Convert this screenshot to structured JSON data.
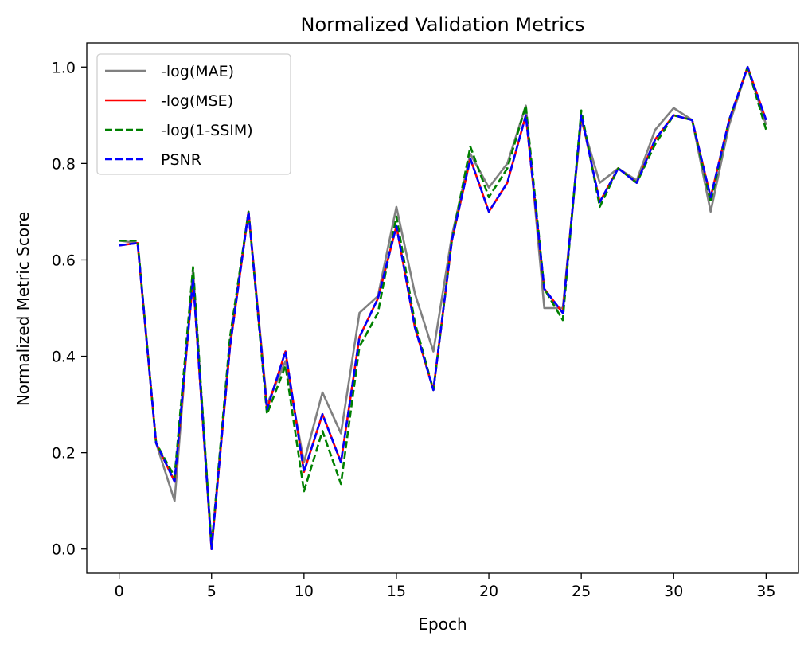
{
  "chart_data": {
    "type": "line",
    "title": "Normalized Validation Metrics",
    "xlabel": "Epoch",
    "ylabel": "Normalized Metric Score",
    "xlim": [
      -1.75,
      36.75
    ],
    "ylim": [
      -0.05,
      1.05
    ],
    "x_ticks": [
      0,
      5,
      10,
      15,
      20,
      25,
      30,
      35
    ],
    "y_ticks": [
      0.0,
      0.2,
      0.4,
      0.6,
      0.8,
      1.0
    ],
    "y_tick_labels": [
      "0.0",
      "0.2",
      "0.4",
      "0.6",
      "0.8",
      "1.0"
    ],
    "grid": false,
    "legend_position": "upper-left",
    "x": [
      0,
      1,
      2,
      3,
      4,
      5,
      6,
      7,
      8,
      9,
      10,
      11,
      12,
      13,
      14,
      15,
      16,
      17,
      18,
      19,
      20,
      21,
      22,
      23,
      24,
      25,
      26,
      27,
      28,
      29,
      30,
      31,
      32,
      33,
      34,
      35
    ],
    "series": [
      {
        "name": "-log(MAE)",
        "color": "#808080",
        "dash": "solid",
        "values": [
          0.64,
          0.635,
          0.22,
          0.1,
          0.58,
          0.005,
          0.43,
          0.7,
          0.3,
          0.39,
          0.18,
          0.325,
          0.24,
          0.49,
          0.525,
          0.71,
          0.53,
          0.41,
          0.65,
          0.82,
          0.75,
          0.8,
          0.92,
          0.5,
          0.5,
          0.89,
          0.76,
          0.79,
          0.765,
          0.87,
          0.915,
          0.89,
          0.7,
          0.88,
          1.0,
          0.88
        ]
      },
      {
        "name": "-log(MSE)",
        "color": "#ff0000",
        "dash": "solid",
        "values": [
          0.63,
          0.635,
          0.22,
          0.14,
          0.56,
          0.0,
          0.42,
          0.7,
          0.29,
          0.41,
          0.16,
          0.28,
          0.18,
          0.44,
          0.52,
          0.67,
          0.46,
          0.33,
          0.64,
          0.81,
          0.7,
          0.76,
          0.9,
          0.54,
          0.49,
          0.9,
          0.72,
          0.79,
          0.76,
          0.85,
          0.9,
          0.89,
          0.73,
          0.89,
          1.0,
          0.89
        ]
      },
      {
        "name": "-log(1-SSIM)",
        "color": "#008000",
        "dash": "dashed",
        "values": [
          0.64,
          0.64,
          0.22,
          0.15,
          0.585,
          0.005,
          0.44,
          0.7,
          0.28,
          0.38,
          0.12,
          0.245,
          0.135,
          0.42,
          0.49,
          0.69,
          0.47,
          0.33,
          0.64,
          0.835,
          0.73,
          0.79,
          0.92,
          0.54,
          0.475,
          0.91,
          0.71,
          0.79,
          0.76,
          0.84,
          0.9,
          0.89,
          0.72,
          0.89,
          1.0,
          0.87
        ]
      },
      {
        "name": "PSNR",
        "color": "#0000ff",
        "dash": "dashed",
        "values": [
          0.63,
          0.635,
          0.22,
          0.14,
          0.56,
          0.0,
          0.42,
          0.7,
          0.29,
          0.41,
          0.16,
          0.28,
          0.18,
          0.44,
          0.52,
          0.67,
          0.46,
          0.33,
          0.64,
          0.81,
          0.7,
          0.76,
          0.9,
          0.54,
          0.49,
          0.9,
          0.72,
          0.79,
          0.76,
          0.85,
          0.9,
          0.89,
          0.73,
          0.89,
          1.0,
          0.89
        ]
      }
    ]
  }
}
